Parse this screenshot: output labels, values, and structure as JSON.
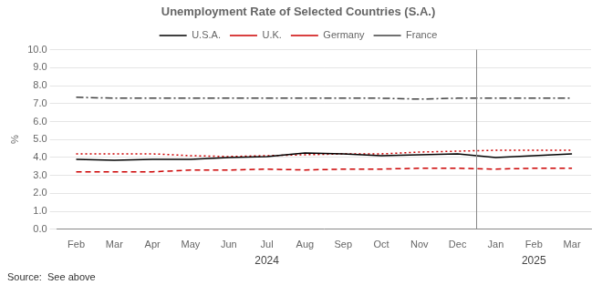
{
  "chart_data": {
    "type": "line",
    "title": "Unemployment Rate of Selected Countries (S.A.)",
    "ylabel": "%",
    "source": "Source:  See above",
    "categories": [
      "Feb",
      "Mar",
      "Apr",
      "May",
      "Jun",
      "Jul",
      "Aug",
      "Sep",
      "Oct",
      "Nov",
      "Dec",
      "Jan",
      "Feb",
      "Mar"
    ],
    "series": [
      {
        "name": "U.S.A.",
        "color": "#000000",
        "line_style": "solid",
        "values": [
          3.9,
          3.85,
          3.9,
          3.9,
          4.0,
          4.05,
          4.25,
          4.2,
          4.1,
          4.15,
          4.2,
          4.0,
          4.1,
          4.2
        ]
      },
      {
        "name": "U.K.",
        "color": "#cc0000",
        "line_style": "dotted",
        "values": [
          4.2,
          4.2,
          4.2,
          4.1,
          4.05,
          4.1,
          4.15,
          4.2,
          4.2,
          4.3,
          4.35,
          4.4,
          4.4,
          4.4
        ]
      },
      {
        "name": "Germany",
        "color": "#cc0000",
        "line_style": "dashed",
        "values": [
          3.2,
          3.2,
          3.2,
          3.3,
          3.3,
          3.35,
          3.3,
          3.35,
          3.35,
          3.4,
          3.4,
          3.35,
          3.4,
          3.4
        ]
      },
      {
        "name": "France",
        "color": "#404040",
        "line_style": "dashdot",
        "values": [
          7.35,
          7.3,
          7.3,
          7.3,
          7.3,
          7.3,
          7.3,
          7.3,
          7.3,
          7.25,
          7.3,
          7.3,
          7.3,
          7.3
        ]
      }
    ],
    "ylim": [
      0.0,
      10.0
    ],
    "yticks": [
      {
        "value": 0.0,
        "label": "0.0"
      },
      {
        "value": 1.0,
        "label": "1.0"
      },
      {
        "value": 2.0,
        "label": "2.0"
      },
      {
        "value": 3.0,
        "label": "3.0"
      },
      {
        "value": 4.0,
        "label": "4.0"
      },
      {
        "value": 5.0,
        "label": "5.0"
      },
      {
        "value": 6.0,
        "label": "6.0"
      },
      {
        "value": 7.0,
        "label": "7.0"
      },
      {
        "value": 8.0,
        "label": "8.0"
      },
      {
        "value": 9.0,
        "label": "9.0"
      },
      {
        "value": 10.0,
        "label": "10.0"
      }
    ],
    "grid": true,
    "legend": "top",
    "annotations": [
      {
        "text": "2024",
        "x": 5
      },
      {
        "text": "2025",
        "x": 12
      },
      {
        "type": "vline",
        "x": 10.5
      }
    ]
  }
}
